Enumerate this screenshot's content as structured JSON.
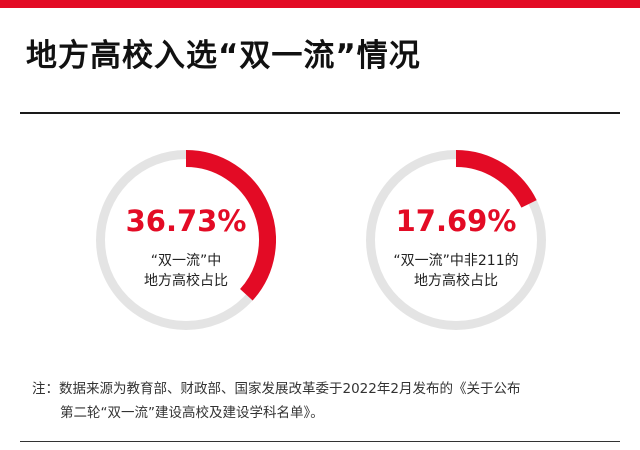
{
  "header": {
    "title": "地方高校入选“双一流”情况"
  },
  "colors": {
    "accent": "#e30b25",
    "track": "#e4e4e4"
  },
  "chart_data": [
    {
      "type": "pie",
      "value": 36.73,
      "value_label": "36.73%",
      "label_lines": [
        "“双一流”中",
        "地方高校占比"
      ]
    },
    {
      "type": "pie",
      "value": 17.69,
      "value_label": "17.69%",
      "label_lines": [
        "“双一流”中非211的",
        "地方高校占比"
      ]
    }
  ],
  "footnote": {
    "line1": "注：数据来源为教育部、财政部、国家发展改革委于2022年2月发布的《关于公布",
    "line2": "第二轮“双一流”建设高校及建设学科名单》。"
  }
}
